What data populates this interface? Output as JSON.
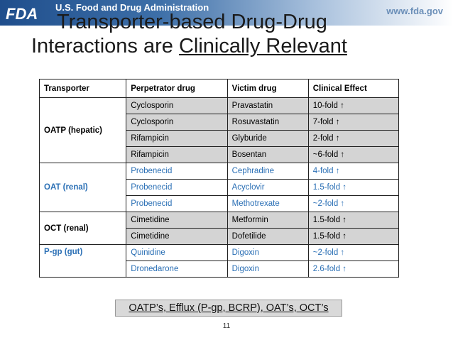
{
  "header": {
    "logo_text": "FDA",
    "agency": "U.S. Food and Drug Administration",
    "url": "www.fda.gov"
  },
  "slide": {
    "title_line1": "Transporter-based Drug-Drug",
    "title_line2_prefix": "Interactions are ",
    "title_line2_underlined": "Clinically Relevant"
  },
  "table": {
    "headers": [
      "Transporter",
      "Perpetrator drug",
      "Victim drug",
      "Clinical Effect"
    ],
    "groups": [
      {
        "transporter": "OATP (hepatic)",
        "rows": [
          [
            "Cyclosporin",
            "Pravastatin",
            "10-fold ↑"
          ],
          [
            "Cyclosporin",
            "Rosuvastatin",
            "7-fold ↑"
          ],
          [
            "Rifampicin",
            "Glyburide",
            "2-fold ↑"
          ],
          [
            "Rifampicin",
            "Bosentan",
            "~6-fold ↑"
          ]
        ]
      },
      {
        "transporter": "OAT (renal)",
        "rows": [
          [
            "Probenecid",
            "Cephradine",
            "4-fold ↑"
          ],
          [
            "Probenecid",
            "Acyclovir",
            "1.5-fold ↑"
          ],
          [
            "Probenecid",
            "Methotrexate",
            "~2-fold ↑"
          ]
        ]
      },
      {
        "transporter": "OCT (renal)",
        "rows": [
          [
            "Cimetidine",
            "Metformin",
            "1.5-fold ↑"
          ],
          [
            "Cimetidine",
            "Dofetilide",
            "1.5-fold ↑"
          ]
        ]
      },
      {
        "transporter": "P-gp (gut)",
        "rows": [
          [
            "Quinidine",
            "Digoxin",
            "~2-fold ↑"
          ],
          [
            "Dronedarone",
            "Digoxin",
            "2.6-fold ↑"
          ]
        ]
      }
    ]
  },
  "footer": {
    "note": "OATP’s, Efflux (P-gp, BCRP), OAT’s, OCT’s",
    "page_number": "11"
  },
  "colors": {
    "header_blue": "#1f4e8c",
    "row_gray": "#d4d4d4",
    "link_blue": "#2a6fb5"
  }
}
